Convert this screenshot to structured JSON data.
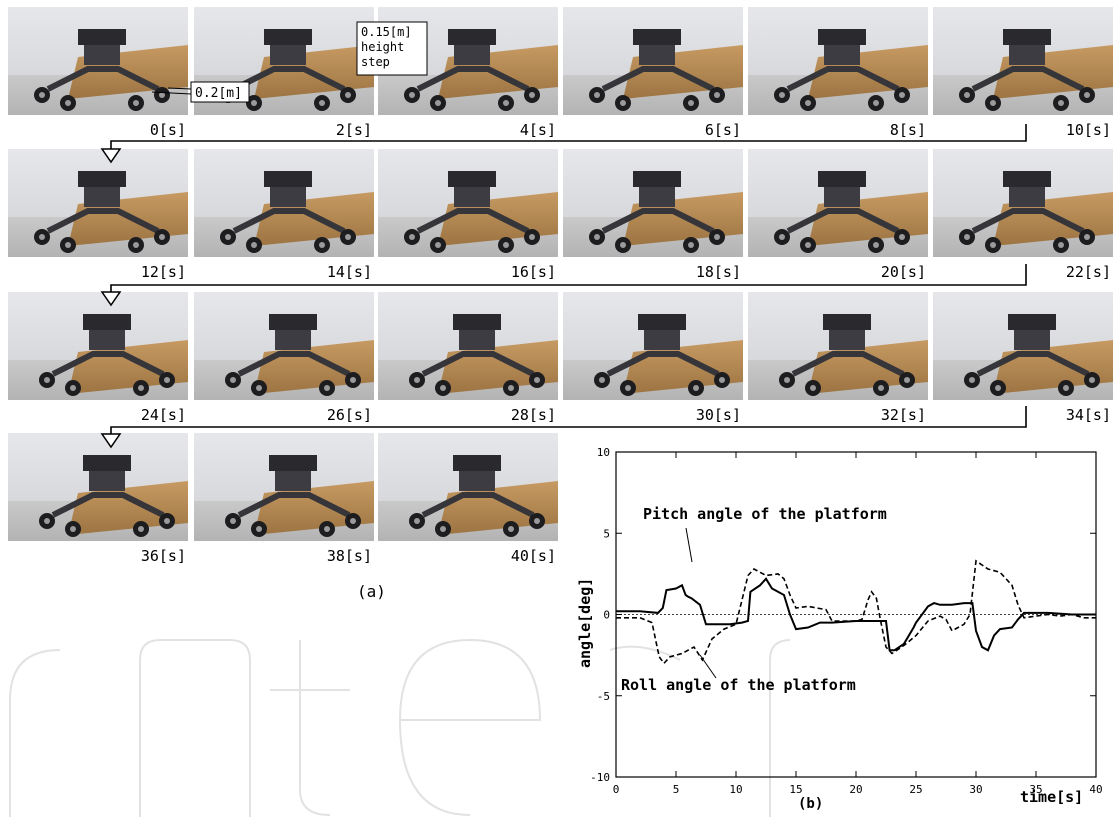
{
  "figure": {
    "panel_a_label": "(a)",
    "panel_b_label": "(b)",
    "frames": [
      {
        "time": "0[s]"
      },
      {
        "time": "2[s]"
      },
      {
        "time": "4[s]"
      },
      {
        "time": "6[s]"
      },
      {
        "time": "8[s]"
      },
      {
        "time": "10[s]"
      },
      {
        "time": "12[s]"
      },
      {
        "time": "14[s]"
      },
      {
        "time": "16[s]"
      },
      {
        "time": "18[s]"
      },
      {
        "time": "20[s]"
      },
      {
        "time": "22[s]"
      },
      {
        "time": "24[s]"
      },
      {
        "time": "26[s]"
      },
      {
        "time": "28[s]"
      },
      {
        "time": "30[s]"
      },
      {
        "time": "32[s]"
      },
      {
        "time": "34[s]"
      },
      {
        "time": "36[s]"
      },
      {
        "time": "38[s]"
      },
      {
        "time": "40[s]"
      }
    ],
    "annotations": {
      "width": "0.2[m]",
      "step_line1": "0.15[m]",
      "step_line2": "height",
      "step_line3": "step"
    },
    "colors": {
      "wall": "#d9dadd",
      "floor": "#c4c4c4",
      "step": "#b38a55",
      "robot": "#2a2a2e",
      "watermark": "#dcdcdc"
    }
  },
  "chart_data": {
    "type": "line",
    "title": "",
    "xlabel": "time[s]",
    "ylabel": "angle[deg]",
    "xlim": [
      0,
      40
    ],
    "ylim": [
      -10,
      10
    ],
    "xticks": [
      "0",
      "5",
      "10",
      "15",
      "20",
      "25",
      "30",
      "35",
      "40"
    ],
    "yticks": [
      "-10",
      "-5",
      "0",
      "5",
      "10"
    ],
    "grid": false,
    "reference_line_y": 0,
    "annotations": [
      {
        "text": "Pitch angle of the platform",
        "points_to": [
          5.8,
          1.6
        ]
      },
      {
        "text": "Roll angle of the platform",
        "points_to": [
          6.5,
          -3.2
        ]
      }
    ],
    "series": [
      {
        "name": "Pitch angle of the platform",
        "style": "solid",
        "x": [
          0,
          2,
          3.5,
          3.9,
          4.2,
          5.0,
          5.5,
          5.8,
          6.0,
          6.3,
          7.0,
          7.5,
          8.5,
          9.5,
          10.5,
          11.0,
          11.2,
          12.0,
          12.5,
          13.0,
          14.0,
          14.5,
          15.0,
          16.0,
          17.0,
          18.0,
          20.0,
          22.0,
          22.5,
          22.8,
          23.2,
          24.0,
          24.8,
          25.0,
          26.0,
          26.5,
          27.0,
          28.0,
          29.0,
          29.7,
          30.0,
          30.5,
          31.0,
          31.5,
          32.0,
          33.0,
          33.5,
          34.0,
          36.0,
          38.0,
          40.0
        ],
        "y": [
          0.2,
          0.2,
          0.1,
          0.4,
          1.5,
          1.6,
          1.8,
          1.2,
          1.1,
          1.0,
          0.6,
          -0.6,
          -0.6,
          -0.6,
          -0.5,
          -0.4,
          1.4,
          1.8,
          2.2,
          1.6,
          1.2,
          0.0,
          -0.9,
          -0.8,
          -0.5,
          -0.5,
          -0.4,
          -0.4,
          -0.4,
          -2.2,
          -2.2,
          -1.8,
          -0.8,
          -0.5,
          0.5,
          0.7,
          0.6,
          0.6,
          0.7,
          0.7,
          -1.0,
          -2.0,
          -2.2,
          -1.3,
          -0.9,
          -0.8,
          -0.3,
          0.1,
          0.1,
          0.0,
          0.0
        ]
      },
      {
        "name": "Roll angle of the platform",
        "style": "dashed",
        "x": [
          0,
          2,
          3.0,
          3.6,
          4.0,
          4.5,
          5.5,
          6.5,
          7.2,
          8.0,
          9.0,
          10.0,
          10.5,
          11.0,
          11.5,
          12.5,
          13.5,
          14.0,
          14.5,
          15.0,
          16.0,
          17.5,
          18.0,
          19.0,
          20.0,
          20.5,
          21.0,
          21.3,
          21.7,
          22.0,
          22.5,
          23.0,
          24.0,
          25.0,
          26.0,
          27.0,
          27.5,
          28.0,
          29.0,
          29.5,
          30.0,
          31.0,
          32.0,
          33.0,
          33.5,
          34.0,
          35.0,
          36.0,
          37.0,
          38.0,
          39.0,
          40.0
        ],
        "y": [
          -0.2,
          -0.2,
          -0.5,
          -2.6,
          -3.0,
          -2.6,
          -2.4,
          -2.0,
          -2.8,
          -1.5,
          -0.9,
          -0.6,
          0.9,
          2.4,
          2.8,
          2.4,
          2.5,
          2.2,
          1.2,
          0.4,
          0.5,
          0.3,
          -0.4,
          -0.4,
          -0.4,
          -0.3,
          0.9,
          1.4,
          1.0,
          -0.2,
          -2.0,
          -2.4,
          -1.9,
          -1.3,
          -0.4,
          -0.1,
          -0.3,
          -1.0,
          -0.6,
          0.0,
          3.3,
          2.8,
          2.6,
          1.8,
          0.6,
          -0.2,
          -0.1,
          0.0,
          -0.1,
          0.0,
          -0.2,
          -0.2
        ]
      }
    ]
  }
}
